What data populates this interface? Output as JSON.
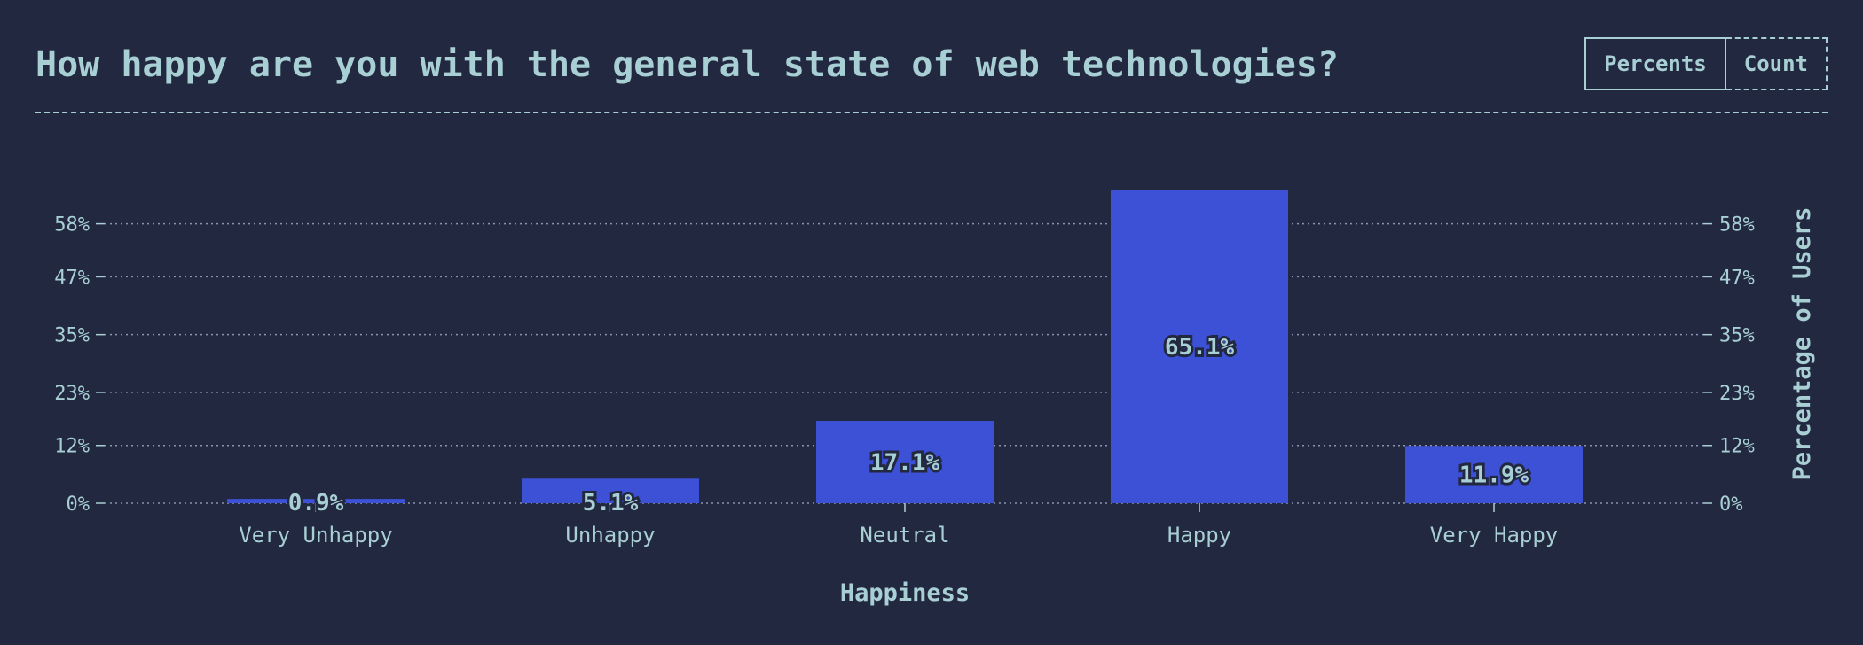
{
  "header": {
    "title": "How happy are you with the general state of web technologies?"
  },
  "toggle": {
    "percents_label": "Percents",
    "count_label": "Count"
  },
  "colors": {
    "background": "#232841",
    "text": "#a7cfd4",
    "bar": "#3c51d5",
    "grid": "#8a93b0"
  },
  "chart_data": {
    "type": "bar",
    "categories": [
      "Very Unhappy",
      "Unhappy",
      "Neutral",
      "Happy",
      "Very Happy"
    ],
    "values": [
      0.9,
      5.1,
      17.1,
      65.1,
      11.9
    ],
    "value_labels": [
      "0.9%",
      "5.1%",
      "17.1%",
      "65.1%",
      "11.9%"
    ],
    "xlabel": "Happiness",
    "ylabel": "Percentage of Users",
    "yticks": [
      0,
      12,
      23,
      35,
      47,
      58
    ],
    "ytick_labels": [
      "0%",
      "12%",
      "23%",
      "35%",
      "47%",
      "58%"
    ],
    "ylim": [
      0,
      65.1
    ],
    "grid": true,
    "y_axis_sides": "both"
  }
}
